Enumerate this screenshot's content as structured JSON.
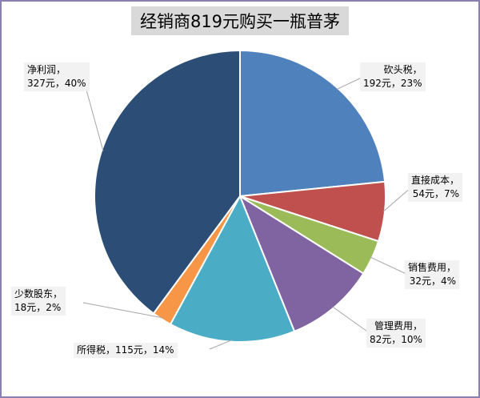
{
  "chart_data": {
    "type": "pie",
    "title": "经销商819元购买一瓶普茅",
    "total": 819,
    "slices": [
      {
        "name": "砍头税",
        "value": 192,
        "value_label": "192元",
        "pct_label": "23%",
        "color": "#4f81bd"
      },
      {
        "name": "直接成本",
        "value": 54,
        "value_label": "54元",
        "pct_label": "7%",
        "color": "#c0504d"
      },
      {
        "name": "销售费用",
        "value": 32,
        "value_label": "32元",
        "pct_label": "4%",
        "color": "#9bbb59"
      },
      {
        "name": "管理费用",
        "value": 82,
        "value_label": "82元",
        "pct_label": "10%",
        "color": "#8064a2"
      },
      {
        "name": "所得税",
        "value": 115,
        "value_label": "115元",
        "pct_label": "14%",
        "color": "#4bacc6"
      },
      {
        "name": "少数股东",
        "value": 18,
        "value_label": "18元",
        "pct_label": "2%",
        "color": "#f79646"
      },
      {
        "name": "净利润",
        "value": 327,
        "value_label": "327元",
        "pct_label": "40%",
        "color": "#2c4d75"
      }
    ],
    "start_angle": "12 o'clock",
    "direction": "clockwise",
    "legend": "none"
  }
}
